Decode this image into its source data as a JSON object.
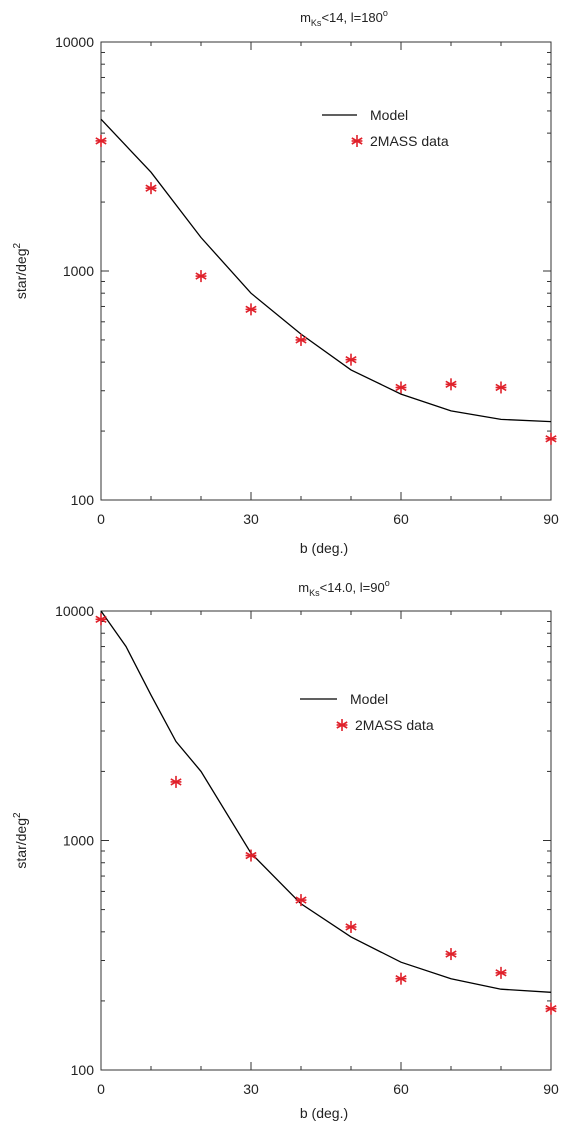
{
  "chart_data": [
    {
      "type": "line",
      "title_main": "m",
      "title_sub": "Ks",
      "title_rest": "<14, l=180",
      "title_sup": "o",
      "xlabel": "b (deg.)",
      "ylabel_main": "star/deg",
      "ylabel_sup": "2",
      "xlim": [
        0,
        90
      ],
      "ylim": [
        100,
        10000
      ],
      "y_scale": "log",
      "x_ticks": [
        0,
        30,
        60,
        90
      ],
      "x_tick_labels": [
        "0",
        "30",
        "60",
        "90"
      ],
      "y_ticks": [
        100,
        1000,
        10000
      ],
      "y_tick_labels": [
        "100",
        "1000",
        "10000"
      ],
      "grid": false,
      "legend_position": "upper-right",
      "series": [
        {
          "name": "Model",
          "kind": "line",
          "color": "#000000",
          "x": [
            0,
            10,
            20,
            30,
            40,
            50,
            60,
            70,
            80,
            90
          ],
          "y": [
            4600,
            2700,
            1400,
            800,
            530,
            370,
            290,
            245,
            225,
            220
          ]
        },
        {
          "name": "2MASS data",
          "kind": "marker",
          "color": "#e0202a",
          "x": [
            0,
            10,
            20,
            30,
            40,
            50,
            60,
            70,
            80,
            90
          ],
          "y": [
            3700,
            2300,
            950,
            680,
            500,
            410,
            310,
            320,
            310,
            185
          ]
        }
      ]
    },
    {
      "type": "line",
      "title_main": "m",
      "title_sub": "Ks",
      "title_rest": "<14.0, l=90",
      "title_sup": "o",
      "xlabel": "b (deg.)",
      "ylabel_main": "star/deg",
      "ylabel_sup": "2",
      "xlim": [
        0,
        90
      ],
      "ylim": [
        100,
        10000
      ],
      "y_scale": "log",
      "x_ticks": [
        0,
        30,
        60,
        90
      ],
      "x_tick_labels": [
        "0",
        "30",
        "60",
        "90"
      ],
      "y_ticks": [
        100,
        1000,
        10000
      ],
      "y_tick_labels": [
        "100",
        "1000",
        "10000"
      ],
      "grid": false,
      "legend_position": "upper-right",
      "series": [
        {
          "name": "Model",
          "kind": "line",
          "color": "#000000",
          "x": [
            0,
            5,
            10,
            15,
            20,
            30,
            40,
            50,
            60,
            70,
            80,
            90
          ],
          "y": [
            10000,
            7000,
            4300,
            2700,
            2000,
            880,
            530,
            380,
            295,
            250,
            225,
            218
          ]
        },
        {
          "name": "2MASS data",
          "kind": "marker",
          "color": "#e0202a",
          "x": [
            0,
            15,
            30,
            40,
            50,
            60,
            70,
            80,
            90
          ],
          "y": [
            9200,
            1800,
            860,
            550,
            420,
            250,
            320,
            265,
            185
          ]
        }
      ]
    }
  ]
}
